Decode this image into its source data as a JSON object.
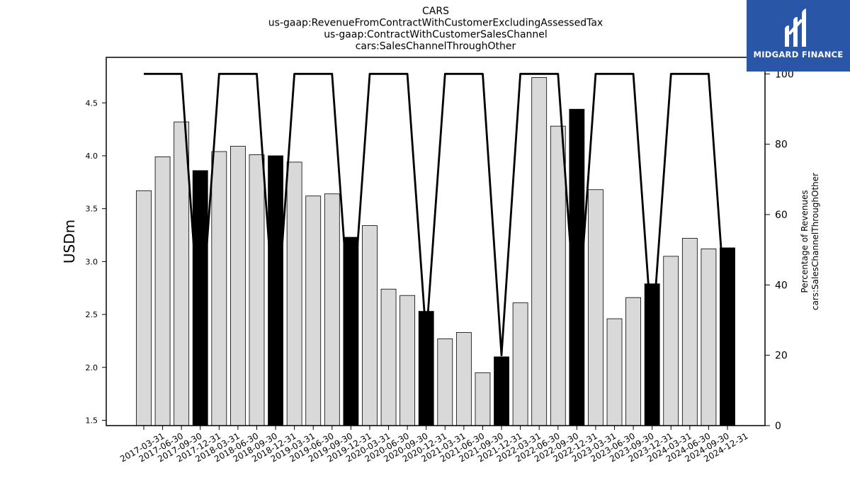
{
  "chart_data": {
    "type": "bar",
    "title_lines": [
      "CARS",
      "us-gaap:RevenueFromContractWithCustomerExcludingAssessedTax",
      "us-gaap:ContractWithCustomerSalesChannel",
      "cars:SalesChannelThroughOther"
    ],
    "ylabel_left": "USDm",
    "ylabel_right_lines": [
      "Percentage of Revenues",
      "cars:SalesChannelThroughOther"
    ],
    "ylim_left": [
      1.45,
      4.93
    ],
    "ylim_right": [
      0,
      104.7
    ],
    "yticks_left": [
      "1.5",
      "2.0",
      "2.5",
      "3.0",
      "3.5",
      "4.0",
      "4.5"
    ],
    "yticks_right": [
      "0",
      "20",
      "40",
      "60",
      "80",
      "100"
    ],
    "categories": [
      "2017-03-31",
      "2017-06-30",
      "2017-09-30",
      "2017-12-31",
      "2018-03-31",
      "2018-06-30",
      "2018-09-30",
      "2018-12-31",
      "2019-03-31",
      "2019-06-30",
      "2019-09-30",
      "2019-12-31",
      "2020-03-31",
      "2020-06-30",
      "2020-09-30",
      "2020-12-31",
      "2021-03-31",
      "2021-06-30",
      "2021-09-30",
      "2021-12-31",
      "2022-03-31",
      "2022-06-30",
      "2022-09-30",
      "2022-12-31",
      "2023-03-31",
      "2023-06-30",
      "2023-09-30",
      "2023-12-31",
      "2024-03-31",
      "2024-06-30",
      "2024-09-30",
      "2024-12-31"
    ],
    "series": [
      {
        "kind": "bar",
        "values": [
          3.67,
          3.99,
          4.32,
          3.86,
          4.04,
          4.09,
          4.01,
          4.0,
          3.94,
          3.62,
          3.64,
          3.23,
          3.34,
          2.74,
          2.68,
          2.53,
          2.27,
          2.33,
          1.95,
          2.1,
          2.61,
          4.74,
          4.28,
          4.44,
          3.68,
          2.46,
          2.66,
          2.79,
          3.05,
          3.22,
          3.12,
          3.13
        ],
        "highlight": [
          false,
          false,
          false,
          true,
          false,
          false,
          false,
          true,
          false,
          false,
          false,
          true,
          false,
          false,
          false,
          true,
          false,
          false,
          false,
          true,
          false,
          false,
          false,
          true,
          false,
          false,
          false,
          true,
          false,
          false,
          false,
          true
        ]
      },
      {
        "kind": "line",
        "axis": "right",
        "values": [
          100,
          100,
          100,
          25,
          100,
          100,
          100,
          25,
          100,
          100,
          100,
          25,
          100,
          100,
          100,
          25,
          100,
          100,
          100,
          20,
          100,
          100,
          100,
          25,
          100,
          100,
          100,
          25,
          100,
          100,
          100,
          25
        ]
      }
    ],
    "colors": {
      "bar": "#d9d9d9",
      "bar_highlight": "#000000",
      "line": "#000000",
      "edge": "#000000"
    }
  },
  "logo": {
    "text": "MIDGARD FINANCE",
    "background": "#2a56a8"
  }
}
